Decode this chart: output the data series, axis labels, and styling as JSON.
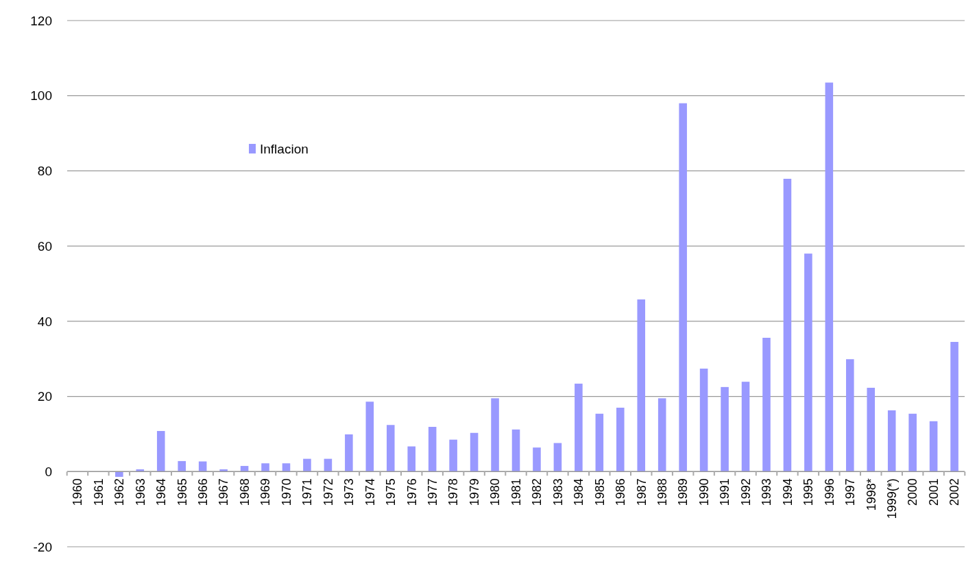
{
  "chart_data": {
    "type": "bar",
    "categories": [
      "1960",
      "1961",
      "1962",
      "1963",
      "1964",
      "1965",
      "1966",
      "1967",
      "1968",
      "1969",
      "1970",
      "1971",
      "1972",
      "1973",
      "1974",
      "1975",
      "1976",
      "1977",
      "1978",
      "1979",
      "1980",
      "1981",
      "1982",
      "1983",
      "1984",
      "1985",
      "1986",
      "1987",
      "1988",
      "1989",
      "1990",
      "1991",
      "1992",
      "1993",
      "1994",
      "1995",
      "1996",
      "1997",
      "1998*",
      "1999(*)",
      "2000",
      "2001",
      "2002"
    ],
    "series": [
      {
        "name": "Inflacion",
        "color": "#9999ff",
        "values": [
          null,
          null,
          -1.4,
          0.6,
          10.8,
          2.8,
          2.7,
          0.6,
          1.5,
          2.2,
          2.2,
          3.4,
          3.4,
          9.9,
          18.6,
          12.4,
          6.7,
          11.9,
          8.5,
          10.3,
          19.5,
          11.2,
          6.4,
          7.6,
          23.4,
          15.4,
          17,
          45.8,
          19.5,
          98,
          27.4,
          22.5,
          23.9,
          35.6,
          77.9,
          58,
          103.5,
          29.9,
          22.3,
          16.3,
          15.4,
          13.4,
          34.5
        ]
      }
    ],
    "ylim": [
      -20,
      120
    ],
    "yticks": [
      -20,
      0,
      20,
      40,
      60,
      80,
      100,
      120
    ],
    "grid": "y",
    "legend": "top left"
  }
}
